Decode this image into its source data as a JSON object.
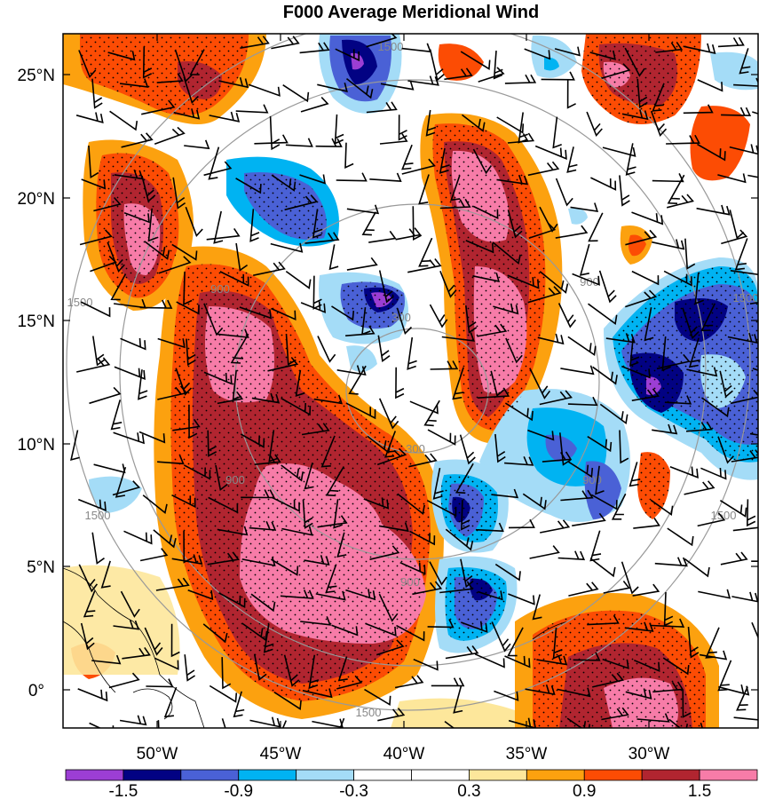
{
  "title": "F000 Average Meridional Wind",
  "lat_labels": [
    "25°N",
    "20°N",
    "15°N",
    "10°N",
    "5°N",
    "0°"
  ],
  "lon_labels": [
    "50°W",
    "45°W",
    "40°W",
    "35°W",
    "30°W"
  ],
  "colorbar": {
    "colors": [
      "#9c3ed4",
      "#020283",
      "#4a61d6",
      "#00b3f2",
      "#a4dcf7",
      "#ffffff",
      "#ffffff",
      "#fde79b",
      "#fca10f",
      "#fc4c04",
      "#b12530",
      "#f77ca8"
    ],
    "labels": [
      "-1.5",
      "-0.9",
      "-0.3",
      "0.3",
      "0.9",
      "1.5"
    ]
  },
  "height_contours": {
    "color": "#999999",
    "labels": [
      "1500",
      "1500",
      "1500",
      "1500",
      "1500",
      "1500",
      "900",
      "900",
      "900",
      "900",
      "900",
      "300",
      "300"
    ]
  }
}
